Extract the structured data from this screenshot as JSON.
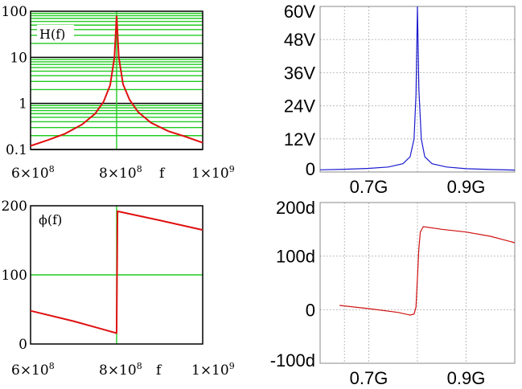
{
  "chart_data": [
    {
      "type": "line",
      "panel": "mathcad-magnitude",
      "yscale": "log",
      "ylim": [
        0.1,
        100
      ],
      "xlim": [
        600000000,
        1000000000
      ],
      "label": "H(f)",
      "xlabel": "f",
      "tick_labels_y": [
        "100",
        "10",
        "1",
        "0.1"
      ],
      "tick_labels_x": [
        "6×10",
        "8×10",
        "1×10"
      ],
      "tick_exponents_x": [
        "8",
        "8",
        "9"
      ],
      "grid": true,
      "series": [
        {
          "x": [
            600000000,
            640000000,
            680000000,
            720000000,
            750000000,
            770000000,
            785000000,
            795000000,
            800000000,
            805000000,
            815000000,
            830000000,
            850000000,
            880000000,
            920000000,
            960000000,
            1000000000
          ],
          "values": [
            0.12,
            0.16,
            0.22,
            0.35,
            0.6,
            1.1,
            2.5,
            10,
            80,
            10,
            2.6,
            1.2,
            0.65,
            0.38,
            0.25,
            0.19,
            0.14
          ]
        }
      ],
      "colors": {
        "line": "#e01010",
        "grid": "#22cc22"
      }
    },
    {
      "type": "line",
      "panel": "mathcad-phase",
      "ylim": [
        0,
        200
      ],
      "xlim": [
        600000000,
        1000000000
      ],
      "label": "ϕ(f)",
      "xlabel": "f",
      "tick_labels_y": [
        "200",
        "100",
        "0"
      ],
      "tick_labels_x": [
        "6×10",
        "8×10",
        "1×10"
      ],
      "tick_exponents_x": [
        "8",
        "8",
        "9"
      ],
      "series": [
        {
          "x": [
            600000000,
            700000000,
            798000000,
            800000000,
            801000000,
            802000000,
            900000000,
            1000000000
          ],
          "values": [
            48,
            33,
            16,
            16,
            100,
            192,
            179,
            165
          ]
        }
      ],
      "colors": {
        "line": "#e01010",
        "grid": "#22cc22"
      }
    },
    {
      "type": "line",
      "panel": "spice-magnitude",
      "ylim": [
        0,
        60
      ],
      "xlim": [
        600000000,
        1000000000
      ],
      "tick_labels_y": [
        "60V",
        "48V",
        "36V",
        "24V",
        "12V",
        "0"
      ],
      "tick_values_y": [
        60,
        48,
        36,
        24,
        12,
        0
      ],
      "tick_labels_x": [
        "0.7G",
        "0.9G"
      ],
      "tick_values_x": [
        700000000,
        900000000
      ],
      "series": [
        {
          "x": [
            600000000,
            650000000,
            700000000,
            740000000,
            770000000,
            785000000,
            793000000,
            797000000,
            800000000,
            803000000,
            808000000,
            815000000,
            830000000,
            860000000,
            900000000,
            950000000,
            1000000000
          ],
          "values": [
            0.8,
            1.0,
            1.3,
            1.8,
            3.0,
            5.5,
            12,
            28,
            60,
            30,
            12,
            5.5,
            3.0,
            1.8,
            1.2,
            0.9,
            0.7
          ]
        }
      ],
      "colors": {
        "line": "#1a1ad0",
        "grid": "#c8c8c8"
      }
    },
    {
      "type": "line",
      "panel": "spice-phase",
      "ylim": [
        -100,
        200
      ],
      "xlim": [
        600000000,
        1000000000
      ],
      "tick_labels_y": [
        "200d",
        "100d",
        "0",
        "-100d"
      ],
      "tick_values_y": [
        200,
        100,
        0,
        -100
      ],
      "tick_labels_x": [
        "0.7G",
        "0.9G"
      ],
      "tick_values_x": [
        700000000,
        900000000
      ],
      "series": [
        {
          "x": [
            640000000,
            700000000,
            760000000,
            785000000,
            793000000,
            797000000,
            800000000,
            803000000,
            806000000,
            812000000,
            850000000,
            900000000,
            950000000,
            1000000000
          ],
          "values": [
            8,
            2,
            -5,
            -10,
            -8,
            5,
            60,
            115,
            145,
            155,
            150,
            145,
            137,
            125
          ]
        }
      ],
      "colors": {
        "line": "#d01010",
        "grid": "#c8c8c8"
      }
    }
  ]
}
